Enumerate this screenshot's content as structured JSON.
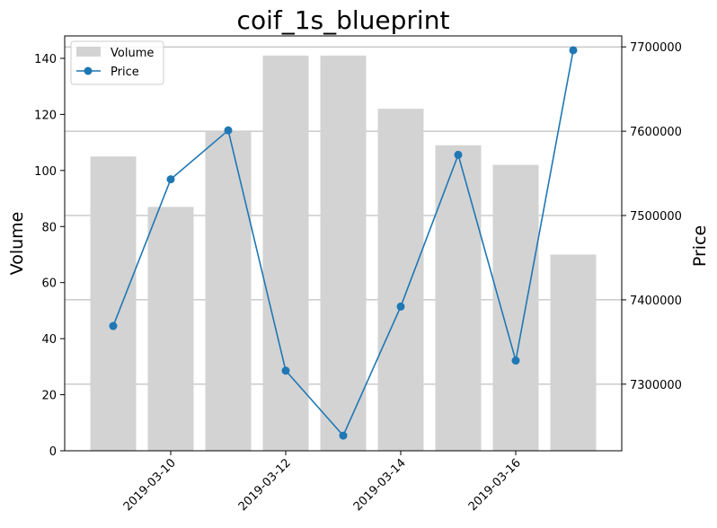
{
  "chart_data": {
    "type": "bar+line",
    "title": "coif_1s_blueprint",
    "dates": [
      "2019-03-09",
      "2019-03-10",
      "2019-03-11",
      "2019-03-12",
      "2019-03-13",
      "2019-03-14",
      "2019-03-15",
      "2019-03-16",
      "2019-03-17"
    ],
    "x_ticks": [
      "2019-03-10",
      "2019-03-12",
      "2019-03-14",
      "2019-03-16"
    ],
    "series": [
      {
        "name": "Volume",
        "kind": "bar",
        "axis": "left",
        "color": "#d3d3d3",
        "values": [
          105,
          87,
          114,
          141,
          141,
          122,
          109,
          102,
          70
        ]
      },
      {
        "name": "Price",
        "kind": "line",
        "axis": "right",
        "color": "#1f77b4",
        "values": [
          7369000,
          7543000,
          7601000,
          7316000,
          7239000,
          7392000,
          7572000,
          7328000,
          7696000
        ]
      }
    ],
    "y_left": {
      "label": "Volume",
      "lim": [
        0,
        148
      ],
      "ticks": [
        0,
        20,
        40,
        60,
        80,
        100,
        120,
        140
      ]
    },
    "y_right": {
      "label": "Price",
      "lim": [
        7221000,
        7713000
      ],
      "ticks": [
        7300000,
        7400000,
        7500000,
        7600000,
        7700000
      ]
    },
    "grid": "horizontal lines at right-axis ticks",
    "legend": "upper-left"
  }
}
